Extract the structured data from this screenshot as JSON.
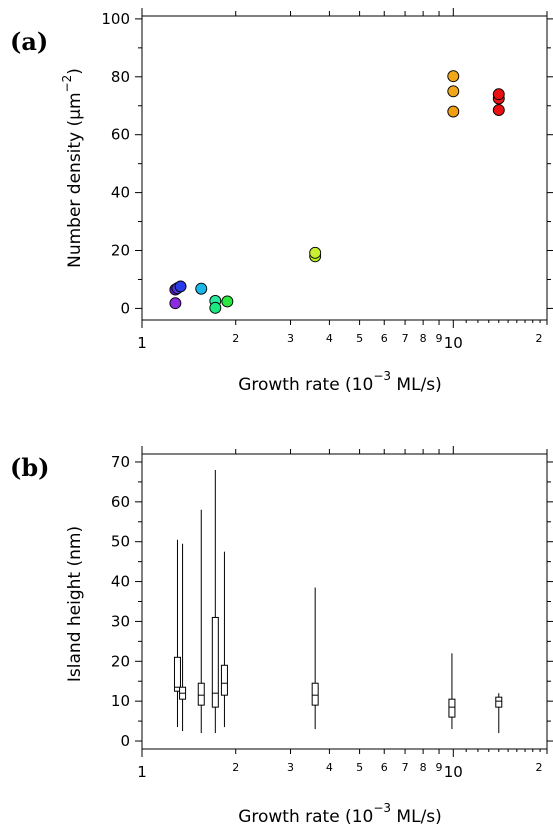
{
  "chart_data": [
    {
      "panel": "(a)",
      "type": "scatter",
      "xscale": "log",
      "xlim": [
        1,
        20
      ],
      "ylim": [
        -4,
        101
      ],
      "xlabel": {
        "main": "Growth rate (10",
        "sup": "−3",
        "tail": " ML/s)"
      },
      "ylabel": {
        "main": "Number density (µm",
        "sup": "−2",
        "tail": ")"
      },
      "y_ticks": [
        "0",
        "20",
        "40",
        "60",
        "80",
        "100"
      ],
      "x_ticks_major": [
        "1",
        "10"
      ],
      "x_ticks_minor": [
        "2",
        "3",
        "4",
        "5",
        "6",
        "7",
        "8",
        "9",
        "2"
      ],
      "points": [
        {
          "x": 1.28,
          "y": 1.8,
          "color": "#8a2be2"
        },
        {
          "x": 1.28,
          "y": 6.5,
          "color": "#6a1be0"
        },
        {
          "x": 1.3,
          "y": 7.0,
          "color": "#4a3ae0"
        },
        {
          "x": 1.33,
          "y": 7.6,
          "color": "#2a3ae8"
        },
        {
          "x": 1.55,
          "y": 6.8,
          "color": "#1ab8e8"
        },
        {
          "x": 1.72,
          "y": 2.6,
          "color": "#2ae8a0"
        },
        {
          "x": 1.72,
          "y": 0.2,
          "color": "#1ae880"
        },
        {
          "x": 1.88,
          "y": 2.4,
          "color": "#2ae840"
        },
        {
          "x": 3.6,
          "y": 18.0,
          "color": "#b8f020"
        },
        {
          "x": 3.6,
          "y": 19.2,
          "color": "#c8f030"
        },
        {
          "x": 10.0,
          "y": 68.0,
          "color": "#f0a010"
        },
        {
          "x": 10.0,
          "y": 75.0,
          "color": "#f0a818"
        },
        {
          "x": 10.0,
          "y": 80.2,
          "color": "#f0a818"
        },
        {
          "x": 14.0,
          "y": 68.5,
          "color": "#e81010"
        },
        {
          "x": 14.0,
          "y": 72.5,
          "color": "#e81818"
        },
        {
          "x": 14.0,
          "y": 74.0,
          "color": "#e81010"
        }
      ]
    },
    {
      "panel": "(b)",
      "type": "box",
      "xscale": "log",
      "xlim": [
        1,
        20
      ],
      "ylim": [
        -2,
        72
      ],
      "xlabel": {
        "main": "Growth rate (10",
        "sup": "−3",
        "tail": " ML/s)"
      },
      "ylabel": {
        "main": "Island height (nm)",
        "sup": "",
        "tail": ""
      },
      "y_ticks": [
        "0",
        "10",
        "20",
        "30",
        "40",
        "50",
        "60",
        "70"
      ],
      "x_ticks_major": [
        "1",
        "10"
      ],
      "x_ticks_minor": [
        "2",
        "3",
        "4",
        "5",
        "6",
        "7",
        "8",
        "9",
        "2"
      ],
      "boxes": [
        {
          "x": 1.3,
          "min": 3.5,
          "q1": 12.5,
          "median": 13.5,
          "q3": 21.0,
          "max": 50.5
        },
        {
          "x": 1.35,
          "min": 2.5,
          "q1": 10.5,
          "median": 12.0,
          "q3": 13.5,
          "max": 49.5
        },
        {
          "x": 1.55,
          "min": 2.0,
          "q1": 9.0,
          "median": 11.5,
          "q3": 14.5,
          "max": 58.0
        },
        {
          "x": 1.72,
          "min": 2.0,
          "q1": 8.5,
          "median": 12.0,
          "q3": 31.0,
          "max": 68.0
        },
        {
          "x": 1.84,
          "min": 3.5,
          "q1": 11.5,
          "median": 14.5,
          "q3": 19.0,
          "max": 47.5
        },
        {
          "x": 3.6,
          "min": 3.0,
          "q1": 9.0,
          "median": 11.5,
          "q3": 14.5,
          "max": 38.5
        },
        {
          "x": 9.9,
          "min": 3.0,
          "q1": 6.0,
          "median": 8.5,
          "q3": 10.5,
          "max": 22.0
        },
        {
          "x": 14.0,
          "min": 2.0,
          "q1": 8.5,
          "median": 10.0,
          "q3": 11.0,
          "max": 12.0
        }
      ]
    }
  ]
}
